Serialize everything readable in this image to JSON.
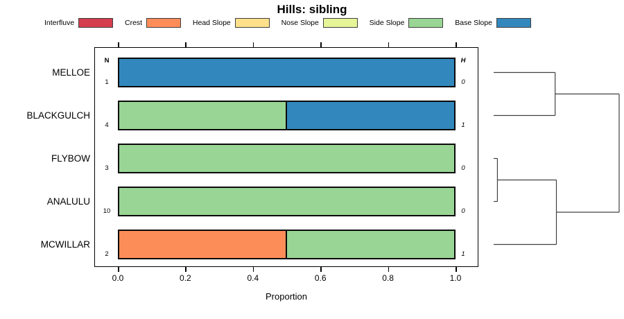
{
  "title": "Hills: sibling",
  "legend": {
    "position": "top",
    "items": [
      {
        "label": "Interfluve",
        "color": "#d53e4f"
      },
      {
        "label": "Crest",
        "color": "#fc8d59"
      },
      {
        "label": "Head Slope",
        "color": "#fee08b"
      },
      {
        "label": "Nose Slope",
        "color": "#e6f598"
      },
      {
        "label": "Side Slope",
        "color": "#99d594"
      },
      {
        "label": "Base Slope",
        "color": "#3288bd"
      }
    ]
  },
  "chart_data": {
    "type": "bar",
    "orientation": "horizontal",
    "stacked": true,
    "title": "Hills: sibling",
    "xlabel": "Proportion",
    "xlim": [
      0,
      1
    ],
    "xtick_labels": [
      "0.0",
      "0.2",
      "0.4",
      "0.6",
      "0.8",
      "1.0"
    ],
    "grid": false,
    "categories": [
      "MELLOE",
      "BLACKGULCH",
      "FLYBOW",
      "ANALULU",
      "MCWILLAR"
    ],
    "n_column": {
      "header": "N",
      "values": [
        "1",
        "4",
        "3",
        "10",
        "2"
      ]
    },
    "h_column": {
      "header": "H",
      "values": [
        "0",
        "1",
        "0",
        "0",
        "1"
      ]
    },
    "series": [
      {
        "name": "Interfluve",
        "color": "#d53e4f",
        "values": [
          0,
          0,
          0,
          0,
          0
        ]
      },
      {
        "name": "Crest",
        "color": "#fc8d59",
        "values": [
          0,
          0,
          0,
          0,
          0.5
        ]
      },
      {
        "name": "Head Slope",
        "color": "#fee08b",
        "values": [
          0,
          0,
          0,
          0,
          0
        ]
      },
      {
        "name": "Nose Slope",
        "color": "#e6f598",
        "values": [
          0,
          0,
          0,
          0,
          0
        ]
      },
      {
        "name": "Side Slope",
        "color": "#99d594",
        "values": [
          0,
          0.5,
          1,
          1,
          0.5
        ]
      },
      {
        "name": "Base Slope",
        "color": "#3288bd",
        "values": [
          1,
          0.5,
          0,
          0,
          0
        ]
      }
    ],
    "dendrogram": {
      "side": "right",
      "height_range": [
        0,
        1
      ],
      "nodes": [
        {
          "id": "n1",
          "children": [
            "FLYBOW",
            "ANALULU"
          ],
          "height": 0.03
        },
        {
          "id": "n2",
          "children": [
            "MELLOE",
            "BLACKGULCH"
          ],
          "height": 0.49
        },
        {
          "id": "n3",
          "children": [
            "n1",
            "MCWILLAR"
          ],
          "height": 0.5
        },
        {
          "id": "n4",
          "children": [
            "n2",
            "n3"
          ],
          "height": 1.0
        }
      ]
    }
  }
}
